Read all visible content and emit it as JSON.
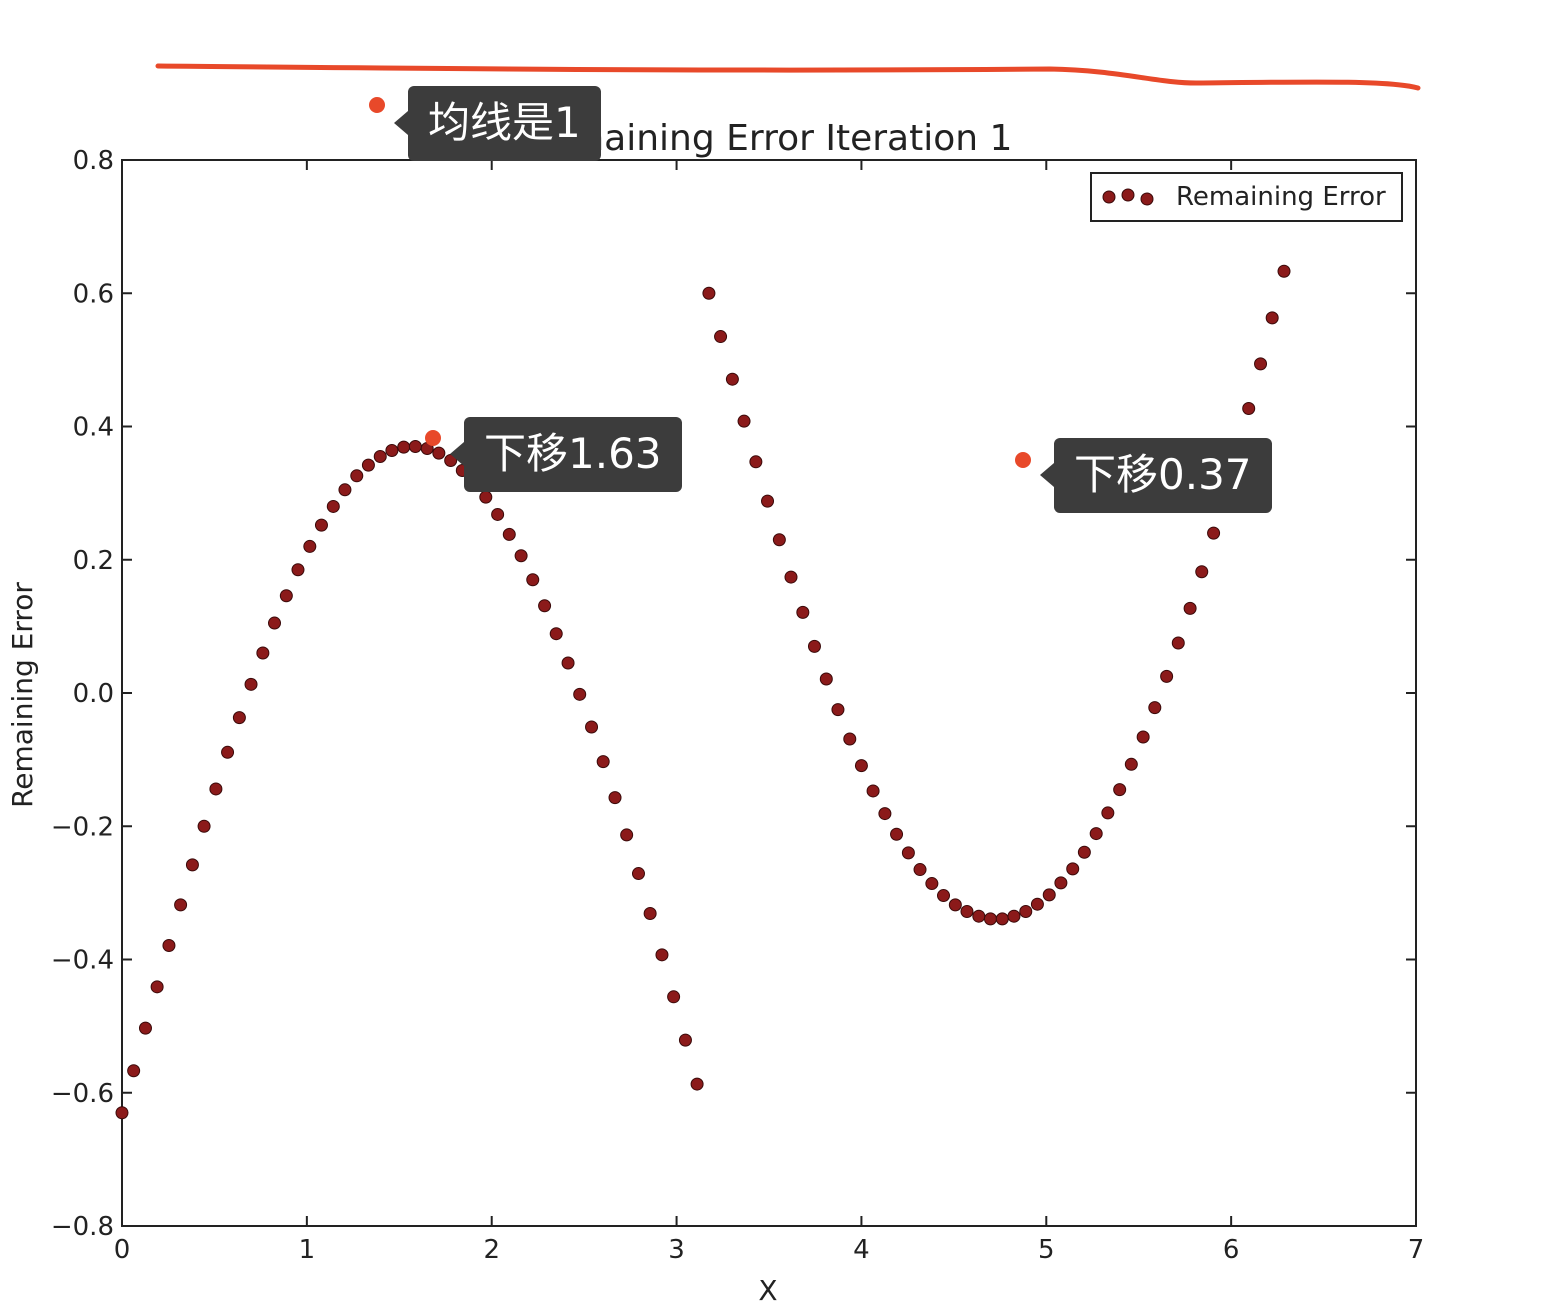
{
  "chart_data": {
    "type": "scatter",
    "title": "Remaining Error Iteration 1",
    "xlabel": "X",
    "ylabel": "Remaining Error",
    "xlim": [
      0,
      7
    ],
    "ylim": [
      -0.8,
      0.8
    ],
    "xticks": [
      "0",
      "1",
      "2",
      "3",
      "4",
      "5",
      "6",
      "7"
    ],
    "yticks": [
      "0.8",
      "0.6",
      "0.4",
      "0.2",
      "0.0",
      "−0.2",
      "−0.4",
      "−0.6",
      "−0.8"
    ],
    "grid": false,
    "legend_position": "top-right",
    "series": [
      {
        "name": "Remaining Error",
        "color": "#8b1a1a",
        "points": [
          [
            0.0,
            -0.63
          ],
          [
            0.063,
            -0.567
          ],
          [
            0.127,
            -0.503
          ],
          [
            0.19,
            -0.441
          ],
          [
            0.254,
            -0.379
          ],
          [
            0.317,
            -0.318
          ],
          [
            0.381,
            -0.258
          ],
          [
            0.444,
            -0.2
          ],
          [
            0.508,
            -0.144
          ],
          [
            0.571,
            -0.089
          ],
          [
            0.635,
            -0.037
          ],
          [
            0.698,
            0.013
          ],
          [
            0.762,
            0.06
          ],
          [
            0.825,
            0.105
          ],
          [
            0.889,
            0.146
          ],
          [
            0.952,
            0.185
          ],
          [
            1.016,
            0.22
          ],
          [
            1.079,
            0.252
          ],
          [
            1.143,
            0.28
          ],
          [
            1.206,
            0.305
          ],
          [
            1.27,
            0.326
          ],
          [
            1.333,
            0.342
          ],
          [
            1.397,
            0.355
          ],
          [
            1.46,
            0.364
          ],
          [
            1.524,
            0.369
          ],
          [
            1.587,
            0.37
          ],
          [
            1.651,
            0.367
          ],
          [
            1.714,
            0.36
          ],
          [
            1.778,
            0.349
          ],
          [
            1.841,
            0.334
          ],
          [
            1.905,
            0.316
          ],
          [
            1.968,
            0.294
          ],
          [
            2.032,
            0.268
          ],
          [
            2.095,
            0.238
          ],
          [
            2.159,
            0.206
          ],
          [
            2.222,
            0.17
          ],
          [
            2.286,
            0.131
          ],
          [
            2.349,
            0.089
          ],
          [
            2.413,
            0.045
          ],
          [
            2.476,
            -0.002
          ],
          [
            2.54,
            -0.051
          ],
          [
            2.603,
            -0.103
          ],
          [
            2.667,
            -0.157
          ],
          [
            2.73,
            -0.213
          ],
          [
            2.794,
            -0.271
          ],
          [
            2.857,
            -0.331
          ],
          [
            2.921,
            -0.393
          ],
          [
            2.984,
            -0.456
          ],
          [
            3.048,
            -0.521
          ],
          [
            3.111,
            -0.587
          ],
          [
            3.175,
            0.6
          ],
          [
            3.238,
            0.535
          ],
          [
            3.302,
            0.471
          ],
          [
            3.365,
            0.408
          ],
          [
            3.429,
            0.347
          ],
          [
            3.492,
            0.288
          ],
          [
            3.556,
            0.23
          ],
          [
            3.619,
            0.174
          ],
          [
            3.683,
            0.121
          ],
          [
            3.746,
            0.07
          ],
          [
            3.81,
            0.021
          ],
          [
            3.873,
            -0.025
          ],
          [
            3.937,
            -0.069
          ],
          [
            4.0,
            -0.109
          ],
          [
            4.063,
            -0.147
          ],
          [
            4.127,
            -0.181
          ],
          [
            4.19,
            -0.212
          ],
          [
            4.254,
            -0.24
          ],
          [
            4.317,
            -0.265
          ],
          [
            4.381,
            -0.286
          ],
          [
            4.444,
            -0.304
          ],
          [
            4.508,
            -0.318
          ],
          [
            4.571,
            -0.328
          ],
          [
            4.635,
            -0.335
          ],
          [
            4.698,
            -0.339
          ],
          [
            4.762,
            -0.339
          ],
          [
            4.825,
            -0.335
          ],
          [
            4.889,
            -0.328
          ],
          [
            4.952,
            -0.317
          ],
          [
            5.016,
            -0.303
          ],
          [
            5.079,
            -0.285
          ],
          [
            5.143,
            -0.264
          ],
          [
            5.206,
            -0.239
          ],
          [
            5.27,
            -0.211
          ],
          [
            5.333,
            -0.18
          ],
          [
            5.397,
            -0.145
          ],
          [
            5.46,
            -0.107
          ],
          [
            5.524,
            -0.066
          ],
          [
            5.587,
            -0.022
          ],
          [
            5.651,
            0.025
          ],
          [
            5.714,
            0.075
          ],
          [
            5.778,
            0.127
          ],
          [
            5.841,
            0.182
          ],
          [
            5.905,
            0.24
          ],
          [
            5.968,
            0.3
          ],
          [
            6.032,
            0.362
          ],
          [
            6.095,
            0.427
          ],
          [
            6.159,
            0.494
          ],
          [
            6.222,
            0.563
          ],
          [
            6.286,
            0.633
          ]
        ]
      }
    ]
  },
  "annotations": [
    {
      "text": "均线是1"
    },
    {
      "text": "下移1.63"
    },
    {
      "text": "下移0.37"
    }
  ],
  "pen_color": "#e8492a"
}
